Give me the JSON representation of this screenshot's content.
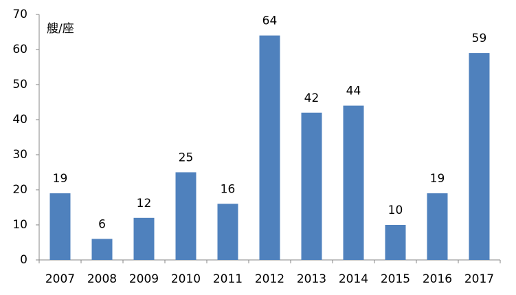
{
  "chart_data": {
    "type": "bar",
    "y_label": "艘/座",
    "categories": [
      "2007",
      "2008",
      "2009",
      "2010",
      "2011",
      "2012",
      "2013",
      "2014",
      "2015",
      "2016",
      "2017"
    ],
    "values": [
      19,
      6,
      12,
      25,
      16,
      64,
      42,
      44,
      10,
      19,
      59
    ],
    "color": "#4f81bd",
    "ylim": [
      0,
      70
    ],
    "yticks": [
      0,
      10,
      20,
      30,
      40,
      50,
      60,
      70
    ],
    "grid": false
  }
}
